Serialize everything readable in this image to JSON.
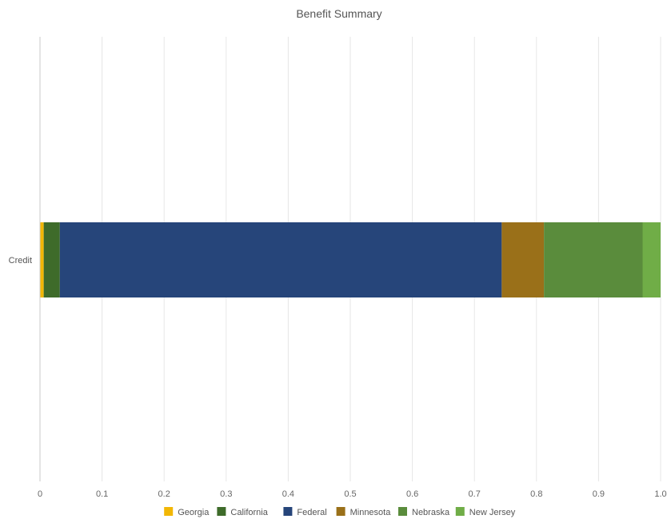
{
  "chart_data": {
    "type": "bar",
    "orientation": "horizontal",
    "stacked": true,
    "title": "Benefit Summary",
    "categories": [
      "Credit"
    ],
    "xlim": [
      0,
      1
    ],
    "x_ticks": [
      0,
      0.1,
      0.2,
      0.3,
      0.4,
      0.5,
      0.6,
      0.7,
      0.8,
      0.9,
      1
    ],
    "x_tick_labels": [
      "0",
      "0.1",
      "0.2",
      "0.3",
      "0.4",
      "0.5",
      "0.6",
      "0.7",
      "0.8",
      "0.9",
      "1.0"
    ],
    "grid": true,
    "legend_position": "bottom",
    "series": [
      {
        "name": "Georgia",
        "color": "#F2B705",
        "values": [
          0.006
        ]
      },
      {
        "name": "California",
        "color": "#3E6B2A",
        "values": [
          0.026
        ]
      },
      {
        "name": "Federal",
        "color": "#26457A",
        "values": [
          0.712
        ]
      },
      {
        "name": "Minnesota",
        "color": "#9A7019",
        "values": [
          0.068
        ]
      },
      {
        "name": "Nebraska",
        "color": "#5A8C3C",
        "values": [
          0.159
        ]
      },
      {
        "name": "New Jersey",
        "color": "#70AD47",
        "values": [
          0.029
        ]
      }
    ]
  }
}
